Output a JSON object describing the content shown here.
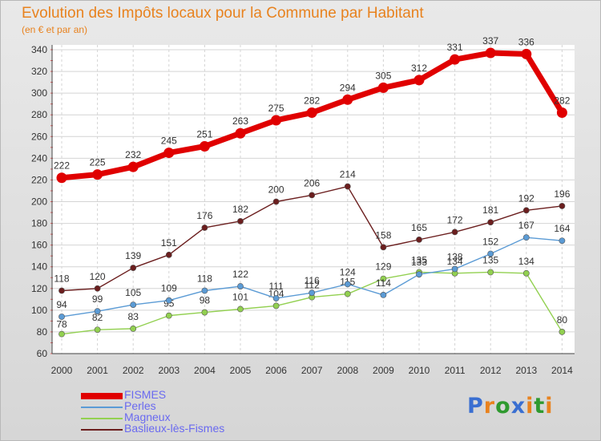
{
  "header": {
    "title": "Evolution des Impôts locaux pour la Commune par Habitant",
    "subtitle": "(en € et par an)"
  },
  "logo": {
    "text": "Proxiti",
    "colors": [
      "#3a6fd1",
      "#e8821e",
      "#2f9a2f",
      "#3a6fd1",
      "#e8821e",
      "#2f9a2f",
      "#e8821e"
    ]
  },
  "chart_data": {
    "type": "line",
    "x": [
      "2000",
      "2001",
      "2002",
      "2003",
      "2004",
      "2005",
      "2006",
      "2007",
      "2008",
      "2009",
      "2010",
      "2011",
      "2012",
      "2013",
      "2014"
    ],
    "ylim": [
      60,
      340
    ],
    "yticks": [
      60,
      80,
      100,
      120,
      140,
      160,
      180,
      200,
      220,
      240,
      260,
      280,
      300,
      320,
      340
    ],
    "grid": true,
    "legend_position": "bottom-left",
    "series": [
      {
        "name": "FISMES",
        "color": "#e00000",
        "values": [
          222,
          225,
          232,
          245,
          251,
          263,
          275,
          282,
          294,
          305,
          312,
          331,
          337,
          336,
          282
        ]
      },
      {
        "name": "Perles",
        "color": "#5b9bd5",
        "values": [
          94,
          99,
          105,
          109,
          118,
          122,
          111,
          116,
          124,
          114,
          133,
          138,
          152,
          167,
          164
        ]
      },
      {
        "name": "Magneux",
        "color": "#92d050",
        "values": [
          78,
          82,
          83,
          95,
          98,
          101,
          104,
          112,
          115,
          129,
          135,
          134,
          135,
          134,
          80
        ]
      },
      {
        "name": "Baslieux-lès-Fismes",
        "color": "#6b1e1e",
        "values": [
          118,
          120,
          139,
          151,
          176,
          182,
          200,
          206,
          214,
          158,
          165,
          172,
          181,
          192,
          196
        ]
      }
    ]
  }
}
